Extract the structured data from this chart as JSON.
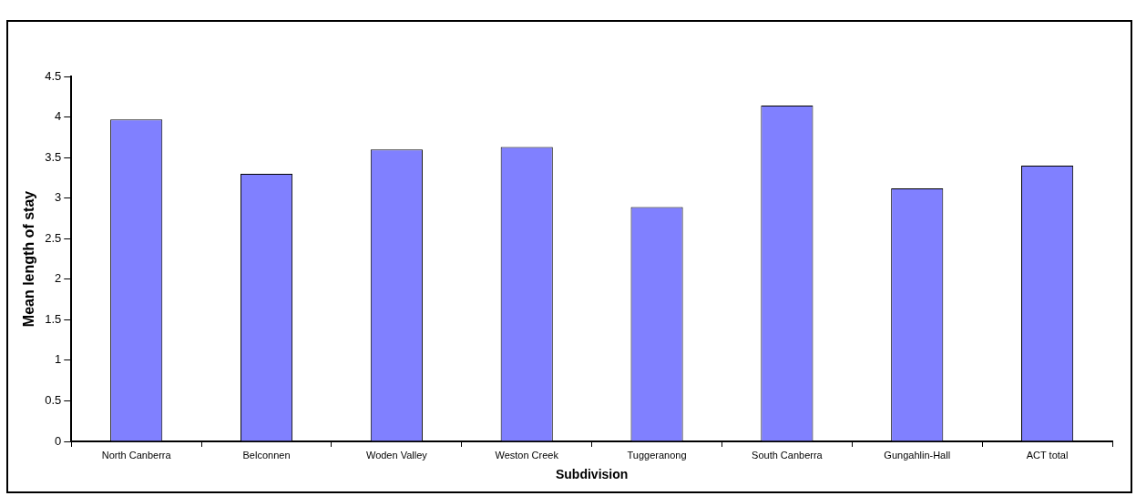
{
  "chart_data": {
    "type": "bar",
    "xlabel": "Subdivision",
    "ylabel": "Mean length of stay",
    "categories": [
      "North Canberra",
      "Belconnen",
      "Woden Valley",
      "Weston Creek",
      "Tuggeranong",
      "South Canberra",
      "Gungahlin-Hall",
      "ACT total"
    ],
    "values": [
      3.97,
      3.3,
      3.6,
      3.63,
      2.89,
      4.14,
      3.12,
      3.4
    ],
    "color": "#8080ff",
    "ylim": [
      0,
      4.5
    ],
    "yticks": [
      0,
      0.5,
      1,
      1.5,
      2,
      2.5,
      3,
      3.5,
      4,
      4.5
    ],
    "grid": false,
    "legend": false
  }
}
